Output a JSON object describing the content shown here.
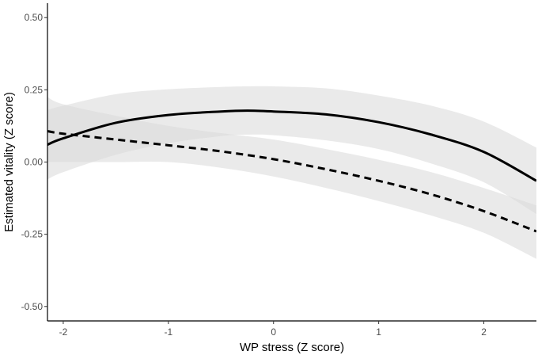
{
  "chart_data": {
    "type": "line",
    "title": "",
    "xlabel": "WP stress (Z score)",
    "ylabel": "Estimated vitality (Z score)",
    "xlim": [
      -2.15,
      2.5
    ],
    "ylim": [
      -0.55,
      0.55
    ],
    "x_ticks": [
      -2,
      -1,
      0,
      1,
      2
    ],
    "x_tick_labels": [
      "-2",
      "-1",
      "0",
      "1",
      "2"
    ],
    "y_ticks": [
      -0.5,
      -0.25,
      0.0,
      0.25,
      0.5
    ],
    "y_tick_labels": [
      "-0.50",
      "-0.25",
      "0.00",
      "0.25",
      "0.50"
    ],
    "grid": false,
    "legend": "none",
    "series": [
      {
        "line_style": "solid",
        "color": "#000000",
        "x": [
          -2.15,
          -2.0,
          -1.5,
          -1.0,
          -0.5,
          -0.25,
          0.0,
          0.5,
          1.0,
          1.5,
          2.0,
          2.5
        ],
        "y": [
          0.06,
          0.082,
          0.136,
          0.163,
          0.175,
          0.178,
          0.175,
          0.165,
          0.138,
          0.095,
          0.035,
          -0.065
        ],
        "ci_lower": [
          -0.06,
          -0.035,
          0.025,
          0.065,
          0.09,
          0.095,
          0.093,
          0.075,
          0.045,
          -0.005,
          -0.07,
          -0.18
        ],
        "ci_upper": [
          0.18,
          0.195,
          0.235,
          0.252,
          0.26,
          0.262,
          0.262,
          0.255,
          0.23,
          0.195,
          0.14,
          0.05
        ]
      },
      {
        "line_style": "dashed",
        "color": "#000000",
        "x": [
          -2.15,
          -2.0,
          -1.5,
          -1.0,
          -0.5,
          0.0,
          0.5,
          1.0,
          1.5,
          2.0,
          2.5
        ],
        "y": [
          0.107,
          0.098,
          0.078,
          0.058,
          0.037,
          0.01,
          -0.025,
          -0.065,
          -0.112,
          -0.17,
          -0.24
        ],
        "ci_lower": [
          0.0,
          0.0,
          0.0,
          0.0,
          -0.02,
          -0.05,
          -0.09,
          -0.135,
          -0.185,
          -0.245,
          -0.335
        ],
        "ci_upper": [
          0.225,
          0.2,
          0.16,
          0.125,
          0.1,
          0.078,
          0.045,
          0.008,
          -0.035,
          -0.09,
          -0.15
        ]
      }
    ],
    "band_color": "#d9d9d9",
    "band_opacity": 0.55
  }
}
